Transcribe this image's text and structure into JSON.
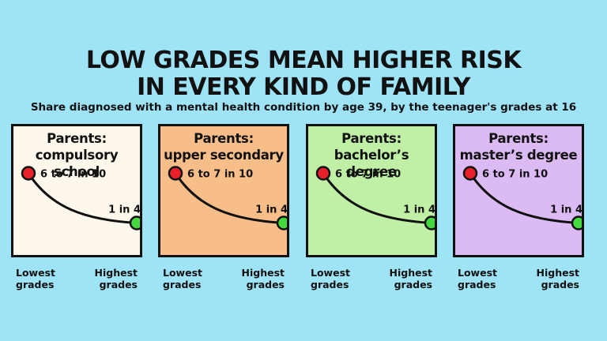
{
  "title_line1": "LOW GRADES MEAN HIGHER RISK",
  "title_line2": "IN EVERY KIND OF FAMILY",
  "subtitle": "Share diagnosed with a mental health condition by age 39, by the teenager's grades at 16",
  "colors": {
    "background": "#9fe3f7",
    "high_point": "#e8202a",
    "low_point": "#44d93f"
  },
  "chart_data": {
    "type": "line",
    "title": "LOW GRADES MEAN HIGHER RISK IN EVERY KIND OF FAMILY",
    "x_labels": [
      "Lowest grades",
      "Highest grades"
    ],
    "panels": [
      {
        "title_line1": "Parents:",
        "title_line2": "compulsory school",
        "color": "#fdf7ec",
        "start_label": "6 to 7 in 10",
        "start_value": 0.65,
        "end_label": "1 in 4",
        "end_value": 0.25,
        "lowest_grades_line1": "Lowest",
        "lowest_grades_line2": "grades",
        "highest_grades_line1": "Highest",
        "highest_grades_line2": "grades"
      },
      {
        "title_line1": "Parents:",
        "title_line2": "upper secondary",
        "color": "#f8be8a",
        "start_label": "6 to 7 in 10",
        "start_value": 0.65,
        "end_label": "1 in 4",
        "end_value": 0.25,
        "lowest_grades_line1": "Lowest",
        "lowest_grades_line2": "grades",
        "highest_grades_line1": "Highest",
        "highest_grades_line2": "grades"
      },
      {
        "title_line1": "Parents:",
        "title_line2": "bachelor’s degree",
        "color": "#bff0a6",
        "start_label": "6 to 7 in 10",
        "start_value": 0.65,
        "end_label": "1 in 4",
        "end_value": 0.25,
        "lowest_grades_line1": "Lowest",
        "lowest_grades_line2": "grades",
        "highest_grades_line1": "Highest",
        "highest_grades_line2": "grades"
      },
      {
        "title_line1": "Parents:",
        "title_line2": "master’s degree",
        "color": "#dcbbf5",
        "start_label": "6 to 7 in 10",
        "start_value": 0.65,
        "end_label": "1 in 4",
        "end_value": 0.25,
        "lowest_grades_line1": "Lowest",
        "lowest_grades_line2": "grades",
        "highest_grades_line1": "Highest",
        "highest_grades_line2": "grades"
      }
    ]
  }
}
